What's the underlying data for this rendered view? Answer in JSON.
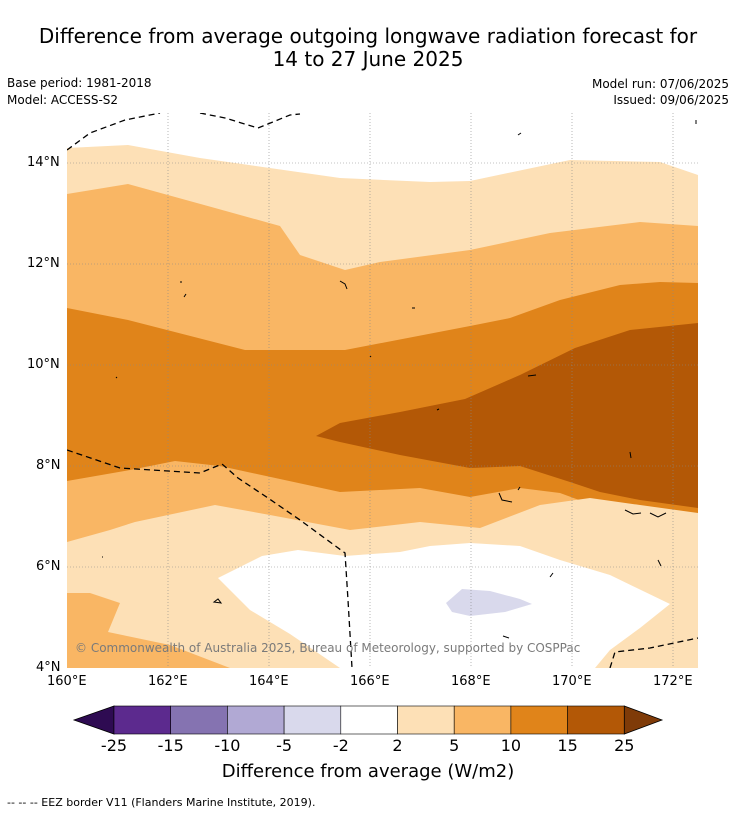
{
  "title_line1": "Difference from average outgoing longwave radiation forecast for",
  "title_line2": "14 to 27 June 2025",
  "base_period": "Base period: 1981-2018",
  "model": "Model: ACCESS-S2",
  "model_run": "Model run: 07/06/2025",
  "issued": "Issued: 09/06/2025",
  "copyright": "© Commonwealth of Australia 2025, Bureau of Meteorology, supported by COSPPac",
  "lat_labels": [
    "14°N",
    "12°N",
    "10°N",
    "8°N",
    "6°N",
    "4°N"
  ],
  "lon_labels": [
    "160°E",
    "162°E",
    "164°E",
    "166°E",
    "168°E",
    "170°E",
    "172°E"
  ],
  "colorbar": {
    "ticks": [
      "-25",
      "-15",
      "-10",
      "-5",
      "-2",
      "2",
      "5",
      "10",
      "15",
      "25"
    ],
    "colors": [
      "#2e0b52",
      "#5c2a8e",
      "#8573b1",
      "#b1a9d4",
      "#d9d9ec",
      "#ffffff",
      "#fde0b6",
      "#f9b664",
      "#e0841a",
      "#b35806",
      "#7f3b08"
    ],
    "title": "Difference from average (W/m2)"
  },
  "footnote": "--  --  -- EEZ border V11 (Flanders Marine Institute, 2019)."
}
